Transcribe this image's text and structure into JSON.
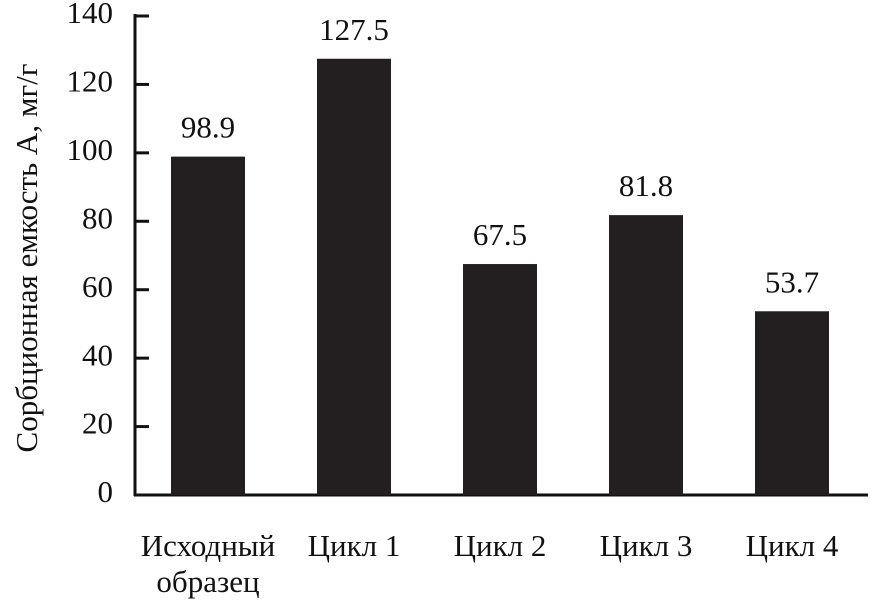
{
  "chart_data": {
    "type": "bar",
    "y_label": "Сорбционная емкость А, мг/г",
    "categories": [
      "Исходный образец",
      "Цикл 1",
      "Цикл 2",
      "Цикл 3",
      "Цикл 4"
    ],
    "values": [
      98.9,
      127.5,
      67.5,
      81.8,
      53.7
    ],
    "color": "#231f20",
    "ylim": [
      0,
      140
    ],
    "yticks": [
      0,
      20,
      40,
      60,
      80,
      100,
      120,
      140
    ],
    "grid": false
  }
}
